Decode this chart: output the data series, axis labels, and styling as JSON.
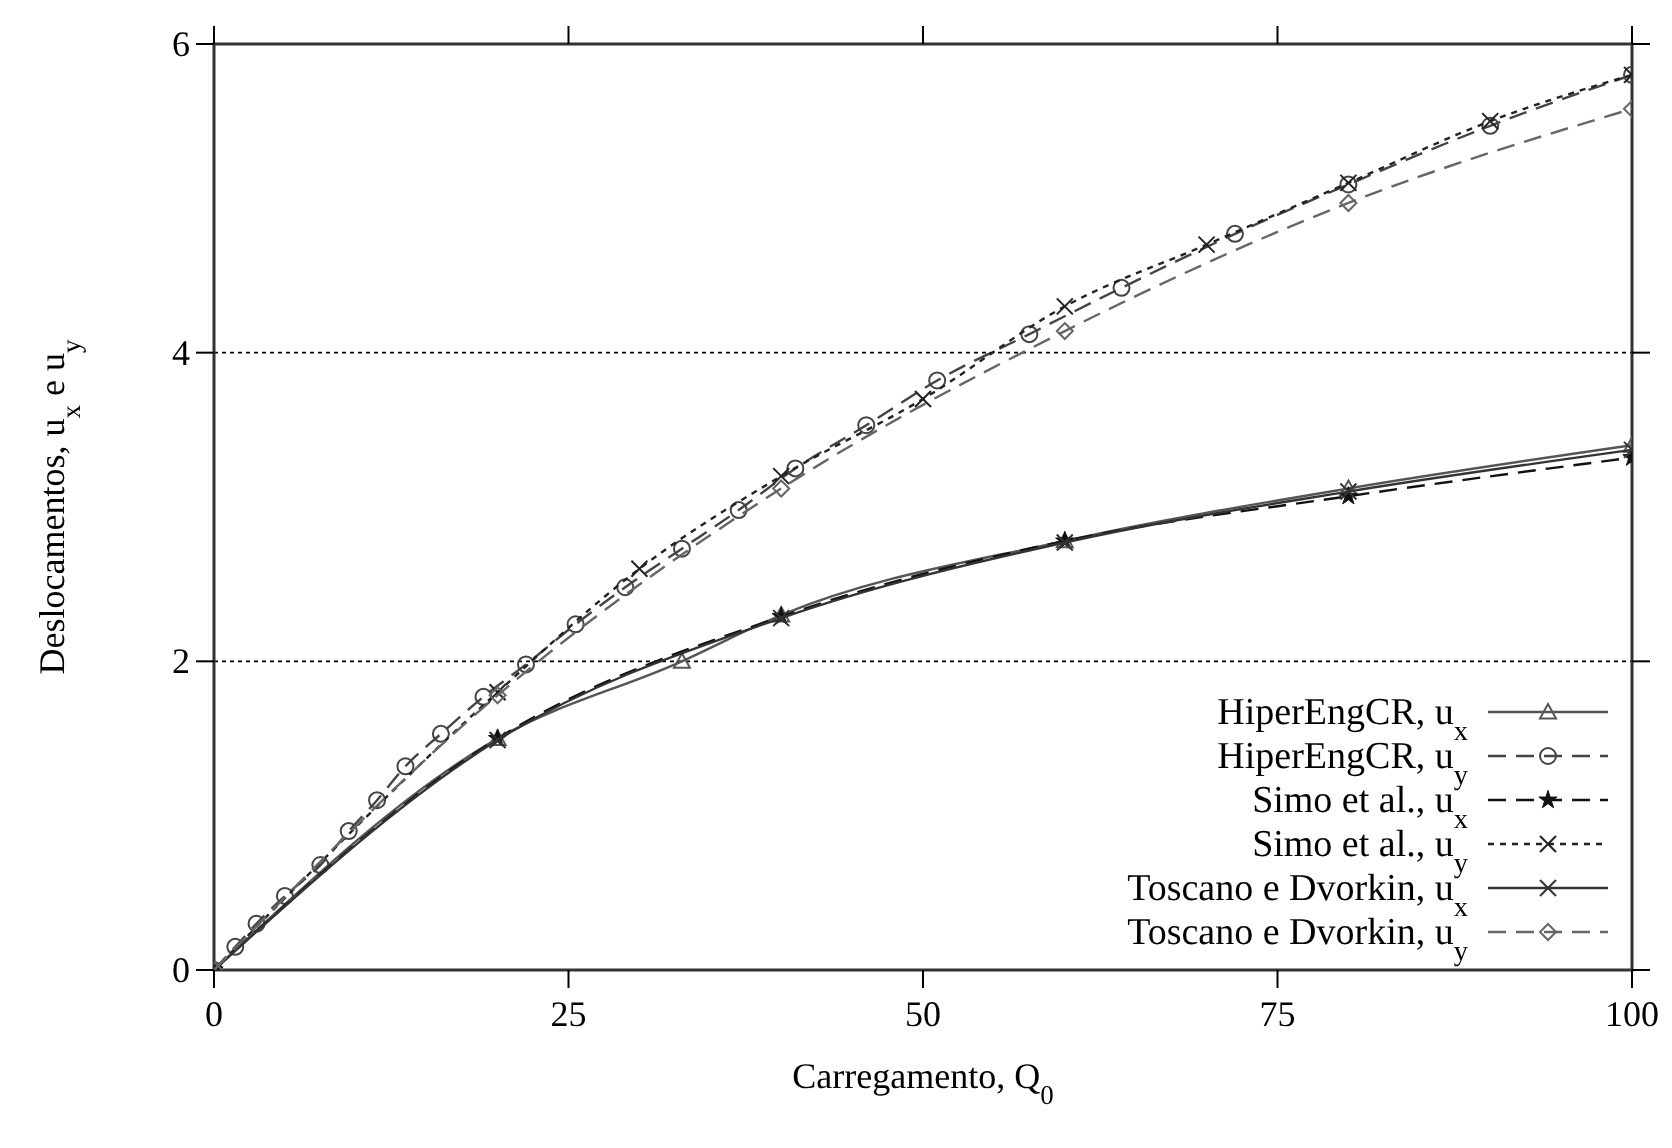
{
  "chart_data": {
    "type": "line",
    "xlabel": "Carregamento, Q$_{0}$",
    "ylabel": "Deslocamentos, u$_{x}$ e u$_{y}$",
    "xlim": [
      0,
      100
    ],
    "ylim": [
      0,
      6
    ],
    "xticks": [
      0,
      25,
      50,
      75,
      100
    ],
    "yticks": [
      0,
      2,
      4,
      6
    ],
    "grid": "y",
    "legend": "bottom right",
    "series": [
      {
        "name": "HiperEngCR, u$_{x}$",
        "color": "#555555",
        "marker": "triangle",
        "line_style": "solid",
        "x": [
          0,
          20,
          33,
          40,
          60,
          80,
          100
        ],
        "values": [
          0,
          1.5,
          2.0,
          2.3,
          2.78,
          3.12,
          3.4
        ]
      },
      {
        "name": "HiperEngCR, u$_{y}$",
        "color": "#444444",
        "marker": "circle",
        "line_style": "dashed",
        "x": [
          0,
          1.5,
          3,
          5,
          7.5,
          9.5,
          11.5,
          13.5,
          16,
          19,
          22,
          25.5,
          29,
          33,
          37,
          41,
          46,
          51,
          57.5,
          64,
          72,
          80,
          90,
          100
        ],
        "values": [
          0,
          0.15,
          0.3,
          0.48,
          0.68,
          0.9,
          1.1,
          1.32,
          1.53,
          1.77,
          1.98,
          2.24,
          2.48,
          2.73,
          2.98,
          3.25,
          3.53,
          3.82,
          4.12,
          4.42,
          4.77,
          5.09,
          5.47,
          5.8
        ]
      },
      {
        "name": "Simo et al., u$_{x}$",
        "color": "#111111",
        "marker": "star",
        "line_style": "dashed",
        "x": [
          0,
          20,
          40,
          60,
          80,
          100
        ],
        "values": [
          0,
          1.5,
          2.29,
          2.78,
          3.07,
          3.32
        ]
      },
      {
        "name": "Simo et al., u$_{y}$",
        "color": "#222222",
        "marker": "cross",
        "line_style": "dotted",
        "x": [
          0,
          20,
          30,
          40,
          50,
          60,
          70,
          80,
          90,
          100
        ],
        "values": [
          0,
          1.8,
          2.6,
          3.2,
          3.7,
          4.3,
          4.7,
          5.1,
          5.5,
          5.8
        ]
      },
      {
        "name": "Toscano e Dvorkin, u$_{x}$",
        "color": "#333333",
        "marker": "cross",
        "line_style": "solid",
        "x": [
          0,
          20,
          40,
          60,
          80,
          100
        ],
        "values": [
          0,
          1.49,
          2.28,
          2.77,
          3.1,
          3.37
        ]
      },
      {
        "name": "Toscano e Dvorkin, u$_{y}$",
        "color": "#666666",
        "marker": "diamond",
        "line_style": "dashed",
        "x": [
          0,
          20,
          40,
          60,
          80,
          100
        ],
        "values": [
          0,
          1.78,
          3.12,
          4.14,
          4.97,
          5.58
        ]
      }
    ]
  }
}
